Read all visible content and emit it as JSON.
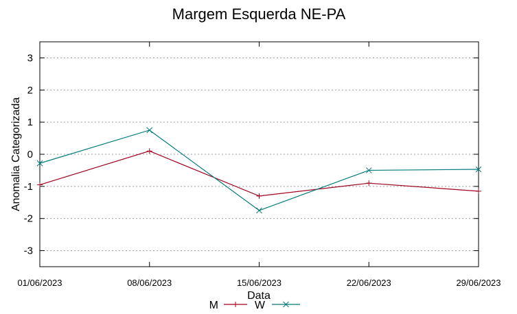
{
  "chart_data": {
    "type": "line",
    "title": "Margem Esquerda NE-PA",
    "xlabel": "Data",
    "ylabel": "Anomalia Categorizada",
    "categories": [
      "01/06/2023",
      "08/06/2023",
      "15/06/2023",
      "22/06/2023",
      "29/06/2023"
    ],
    "ylim": [
      -3.5,
      3.5
    ],
    "yticks": [
      3,
      2,
      1,
      0,
      -1,
      -2,
      -3
    ],
    "grid": true,
    "legend_position": "bottom-center",
    "series": [
      {
        "name": "M",
        "color": "#a0001e",
        "marker": "plus",
        "values": [
          -0.95,
          0.1,
          -1.3,
          -0.9,
          -1.15
        ]
      },
      {
        "name": "W",
        "color": "#007a7a",
        "marker": "cross",
        "values": [
          -0.28,
          0.75,
          -1.75,
          -0.5,
          -0.47
        ]
      }
    ]
  }
}
